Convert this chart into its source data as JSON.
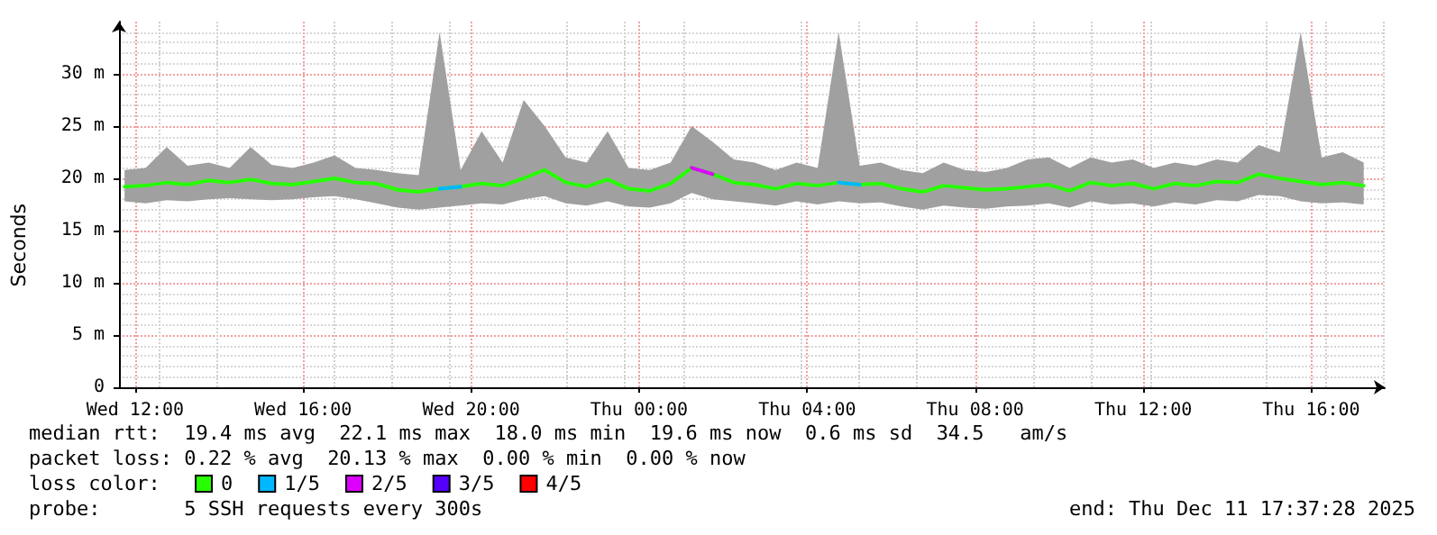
{
  "chart_data": {
    "type": "line",
    "ylabel": "Seconds",
    "x": [
      "2025-12-10T11:45",
      "2025-12-10T12:15",
      "2025-12-10T12:45",
      "2025-12-10T13:15",
      "2025-12-10T13:45",
      "2025-12-10T14:15",
      "2025-12-10T14:45",
      "2025-12-10T15:15",
      "2025-12-10T15:45",
      "2025-12-10T16:15",
      "2025-12-10T16:45",
      "2025-12-10T17:15",
      "2025-12-10T17:45",
      "2025-12-10T18:15",
      "2025-12-10T18:45",
      "2025-12-10T19:15",
      "2025-12-10T19:45",
      "2025-12-10T20:15",
      "2025-12-10T20:45",
      "2025-12-10T21:15",
      "2025-12-10T21:45",
      "2025-12-10T22:15",
      "2025-12-10T22:45",
      "2025-12-10T23:15",
      "2025-12-10T23:45",
      "2025-12-11T00:15",
      "2025-12-11T00:45",
      "2025-12-11T01:15",
      "2025-12-11T01:45",
      "2025-12-11T02:15",
      "2025-12-11T02:45",
      "2025-12-11T03:15",
      "2025-12-11T03:45",
      "2025-12-11T04:15",
      "2025-12-11T04:45",
      "2025-12-11T05:15",
      "2025-12-11T05:45",
      "2025-12-11T06:15",
      "2025-12-11T06:45",
      "2025-12-11T07:15",
      "2025-12-11T07:45",
      "2025-12-11T08:15",
      "2025-12-11T08:45",
      "2025-12-11T09:15",
      "2025-12-11T09:45",
      "2025-12-11T10:15",
      "2025-12-11T10:45",
      "2025-12-11T11:15",
      "2025-12-11T11:45",
      "2025-12-11T12:15",
      "2025-12-11T12:45",
      "2025-12-11T13:15",
      "2025-12-11T13:45",
      "2025-12-11T14:15",
      "2025-12-11T14:45",
      "2025-12-11T15:15",
      "2025-12-11T15:45",
      "2025-12-11T16:15",
      "2025-12-11T16:45",
      "2025-12-11T17:15"
    ],
    "series": [
      {
        "name": "0",
        "color": "#26ff00",
        "values": [
          19.2,
          19.3,
          19.6,
          19.4,
          19.8,
          19.6,
          19.9,
          19.5,
          19.4,
          19.7,
          20.0,
          19.6,
          19.5,
          18.9,
          18.7,
          19.0,
          19.2,
          19.5,
          19.3,
          20.0,
          20.8,
          19.6,
          19.2,
          19.9,
          19.0,
          18.8,
          19.5,
          21.0,
          20.4,
          19.6,
          19.4,
          19.0,
          19.5,
          19.3,
          19.6,
          19.4,
          19.5,
          19.0,
          18.7,
          19.3,
          19.1,
          18.9,
          19.0,
          19.2,
          19.4,
          18.8,
          19.6,
          19.3,
          19.5,
          19.0,
          19.5,
          19.3,
          19.7,
          19.6,
          20.4,
          20.0,
          19.7,
          19.4,
          19.6,
          19.3
        ],
        "lower": [
          17.8,
          17.6,
          17.9,
          17.8,
          18.0,
          18.1,
          18.0,
          17.9,
          18.0,
          18.2,
          18.3,
          18.0,
          17.6,
          17.2,
          17.0,
          17.2,
          17.4,
          17.6,
          17.5,
          18.0,
          18.3,
          17.6,
          17.4,
          17.8,
          17.3,
          17.2,
          17.6,
          18.6,
          18.0,
          17.8,
          17.6,
          17.4,
          17.8,
          17.5,
          17.8,
          17.6,
          17.7,
          17.3,
          17.0,
          17.4,
          17.2,
          17.1,
          17.3,
          17.4,
          17.6,
          17.2,
          17.8,
          17.5,
          17.6,
          17.3,
          17.7,
          17.5,
          17.9,
          17.8,
          18.4,
          18.3,
          17.8,
          17.6,
          17.7,
          17.5
        ],
        "upper": [
          20.8,
          21.0,
          23.0,
          21.2,
          21.5,
          21.0,
          23.0,
          21.3,
          21.0,
          21.5,
          22.2,
          21.0,
          20.8,
          20.5,
          20.3,
          34.0,
          20.8,
          24.5,
          21.5,
          27.5,
          25.0,
          22.0,
          21.5,
          24.5,
          21.0,
          20.8,
          21.5,
          25.0,
          23.5,
          21.8,
          21.5,
          20.8,
          21.5,
          21.0,
          34.0,
          21.2,
          21.5,
          20.8,
          20.5,
          21.5,
          20.8,
          20.6,
          21.0,
          21.8,
          22.0,
          21.0,
          22.0,
          21.5,
          21.8,
          21.0,
          21.5,
          21.2,
          21.8,
          21.5,
          23.2,
          22.5,
          34.0,
          22.0,
          22.5,
          21.5
        ]
      },
      {
        "name": "1/5",
        "color": "#00b8ff",
        "values": [
          null,
          null,
          null,
          null,
          null,
          null,
          null,
          null,
          null,
          null,
          null,
          null,
          null,
          null,
          null,
          19.0,
          19.2,
          null,
          null,
          null,
          null,
          null,
          null,
          null,
          null,
          null,
          null,
          null,
          null,
          null,
          null,
          null,
          null,
          null,
          19.6,
          19.4,
          null,
          null,
          null,
          null,
          null,
          null,
          null,
          null,
          null,
          null,
          null,
          null,
          null,
          null,
          null,
          null,
          null,
          null,
          null,
          null,
          null,
          null,
          null,
          null
        ]
      },
      {
        "name": "2/5",
        "color": "#dd00ff",
        "values": [
          null,
          null,
          null,
          null,
          null,
          null,
          null,
          null,
          null,
          null,
          null,
          null,
          null,
          null,
          null,
          null,
          null,
          null,
          null,
          null,
          null,
          null,
          null,
          null,
          null,
          null,
          null,
          21.0,
          20.4,
          null,
          null,
          null,
          null,
          null,
          null,
          null,
          null,
          null,
          null,
          null,
          null,
          null,
          null,
          null,
          null,
          null,
          null,
          null,
          null,
          null,
          null,
          null,
          null,
          null,
          null,
          null,
          null,
          null,
          null,
          null
        ]
      },
      {
        "name": "3/5",
        "color": "#5500ff",
        "values": [
          null,
          null,
          null,
          null,
          null,
          null,
          null,
          null,
          null,
          null,
          null,
          null,
          null,
          null,
          null,
          null,
          null,
          null,
          null,
          null,
          null,
          null,
          null,
          null,
          null,
          null,
          null,
          null,
          null,
          null,
          null,
          null,
          null,
          null,
          null,
          null,
          null,
          null,
          null,
          null,
          null,
          null,
          null,
          null,
          null,
          null,
          null,
          null,
          null,
          null,
          null,
          null,
          null,
          null,
          null,
          null,
          null,
          null,
          null,
          null
        ]
      },
      {
        "name": "4/5",
        "color": "#ff0000",
        "values": [
          null,
          null,
          null,
          null,
          null,
          null,
          null,
          null,
          null,
          null,
          null,
          null,
          null,
          null,
          null,
          null,
          null,
          null,
          null,
          null,
          null,
          null,
          null,
          null,
          null,
          null,
          null,
          null,
          null,
          null,
          null,
          null,
          null,
          null,
          null,
          null,
          null,
          null,
          null,
          null,
          null,
          null,
          null,
          null,
          null,
          null,
          null,
          null,
          null,
          null,
          null,
          null,
          null,
          null,
          null,
          null,
          null,
          null,
          null,
          null
        ]
      }
    ],
    "legend": "bottom",
    "legend_title": "loss color:",
    "grid": true,
    "marker": "none",
    "line_style": "solid",
    "xlim": [
      "2025-12-10T11:37",
      "2025-12-11T17:45"
    ],
    "xticks": [
      {
        "value": "2025-12-10T12:00",
        "label": "Wed 12:00"
      },
      {
        "value": "2025-12-10T16:00",
        "label": "Wed 16:00"
      },
      {
        "value": "2025-12-10T20:00",
        "label": "Wed 20:00"
      },
      {
        "value": "2025-12-11T00:00",
        "label": "Thu 00:00"
      },
      {
        "value": "2025-12-11T04:00",
        "label": "Thu 04:00"
      },
      {
        "value": "2025-12-11T08:00",
        "label": "Thu 08:00"
      },
      {
        "value": "2025-12-11T12:00",
        "label": "Thu 12:00"
      },
      {
        "value": "2025-12-11T16:00",
        "label": "Thu 16:00"
      }
    ],
    "ylim": [
      0,
      35
    ],
    "yticks": [
      0,
      {
        "value": 5,
        "label": "5 m"
      },
      {
        "value": 10,
        "label": "10 m"
      },
      {
        "value": 15,
        "label": "15 m"
      },
      {
        "value": 20,
        "label": "20 m"
      },
      {
        "value": 25,
        "label": "25 m"
      },
      {
        "value": 30,
        "label": "30 m"
      }
    ],
    "annotations": [
      "median rtt:  19.4 ms avg  22.1 ms max  18.0 ms min  19.6 ms now  0.6 ms sd  34.5   am/s",
      "packet loss: 0.22 % avg  20.13 % max  0.00 % min  0.00 % now",
      "probe:       5 SSH requests every 300s",
      "end: Thu Dec 11 17:37:28 2025"
    ]
  }
}
